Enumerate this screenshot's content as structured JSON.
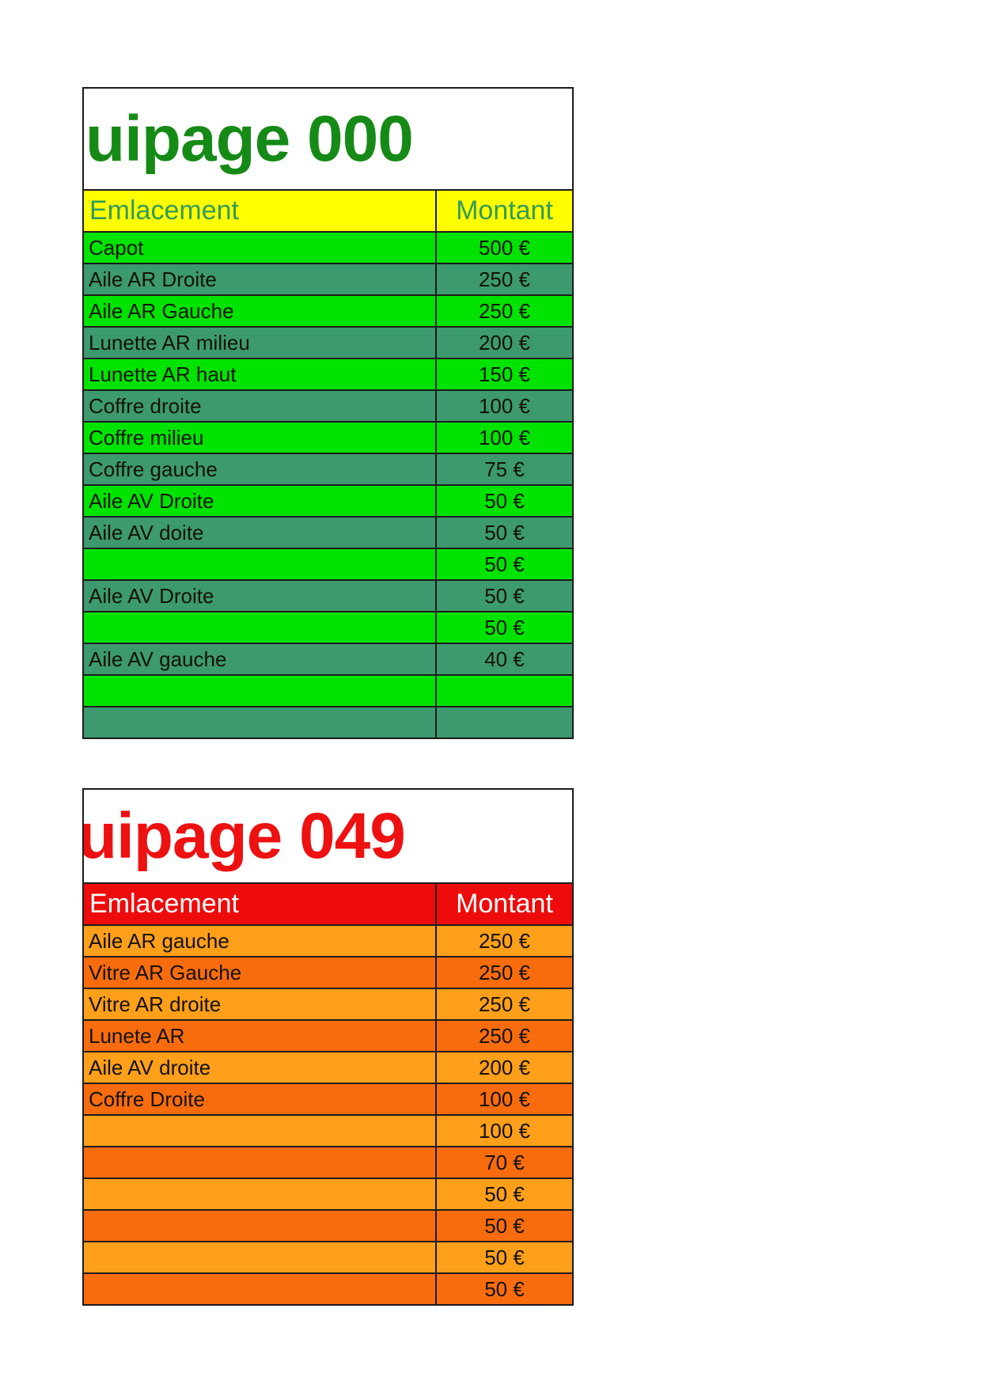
{
  "page": {
    "background": "#ffffff"
  },
  "tables": [
    {
      "id": "equipage-000",
      "title": "uipage 000",
      "title_color": "#168a16",
      "header": {
        "emplacement_label": "Emlacement",
        "montant_label": "Montant",
        "bg": "#ffff00",
        "text_color": "#339a5d"
      },
      "row_colors": [
        "#00e300",
        "#3c9a6e"
      ],
      "rows": [
        {
          "label": "Capot",
          "value": "500 €"
        },
        {
          "label": "Aile AR Droite",
          "value": "250 €"
        },
        {
          "label": "Aile AR Gauche",
          "value": "250 €"
        },
        {
          "label": "Lunette AR milieu",
          "value": "200 €"
        },
        {
          "label": "Lunette AR haut",
          "value": "150 €"
        },
        {
          "label": "Coffre droite",
          "value": "100 €"
        },
        {
          "label": "Coffre milieu",
          "value": "100 €"
        },
        {
          "label": "Coffre gauche",
          "value": "75 €"
        },
        {
          "label": "Aile AV Droite",
          "value": "50 €"
        },
        {
          "label": "Aile AV doite",
          "value": "50 €"
        },
        {
          "label": "",
          "value": "50 €"
        },
        {
          "label": "Aile AV Droite",
          "value": "50 €"
        },
        {
          "label": "",
          "value": "50 €"
        },
        {
          "label": "Aile AV gauche",
          "value": "40 €"
        },
        {
          "label": "",
          "value": ""
        },
        {
          "label": "",
          "value": ""
        }
      ]
    },
    {
      "id": "equipage-049",
      "title": "uipage 049",
      "title_color": "#ee1111",
      "header": {
        "emplacement_label": "Emlacement",
        "montant_label": "Montant",
        "bg": "#ee0b0b",
        "text_color": "#ffffff"
      },
      "row_colors": [
        "#ff9f1a",
        "#f86c0e"
      ],
      "rows": [
        {
          "label": "Aile AR gauche",
          "value": "250 €"
        },
        {
          "label": "Vitre AR Gauche",
          "value": "250 €"
        },
        {
          "label": "Vitre AR droite",
          "value": "250 €"
        },
        {
          "label": "Lunete AR",
          "value": "250 €"
        },
        {
          "label": "Aile AV droite",
          "value": "200 €"
        },
        {
          "label": "Coffre Droite",
          "value": "100 €"
        },
        {
          "label": "",
          "value": "100 €"
        },
        {
          "label": "",
          "value": "70 €"
        },
        {
          "label": "",
          "value": "50 €"
        },
        {
          "label": "",
          "value": "50 €"
        },
        {
          "label": "",
          "value": "50 €"
        },
        {
          "label": "",
          "value": "50 €"
        }
      ]
    }
  ]
}
